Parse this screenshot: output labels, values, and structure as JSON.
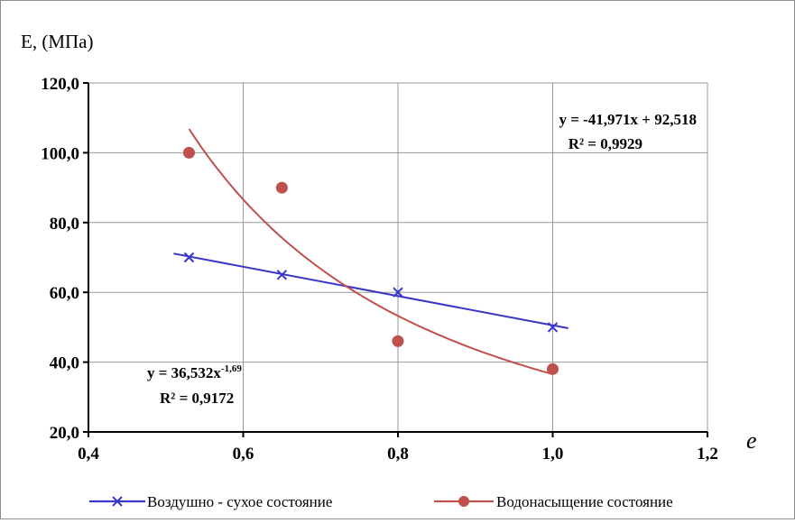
{
  "chart_data": {
    "type": "scatter",
    "title": "",
    "xlabel": "e",
    "ylabel": "E, (МПа)",
    "xlim": [
      0.4,
      1.2
    ],
    "ylim": [
      20.0,
      120.0
    ],
    "x_ticks": [
      "0,4",
      "0,6",
      "0,8",
      "1,0",
      "1,2"
    ],
    "y_ticks": [
      "20,0",
      "40,0",
      "60,0",
      "80,0",
      "100,0",
      "120,0"
    ],
    "grid": true,
    "legend_position": "bottom",
    "series": [
      {
        "name": "Воздушно - сухое состояние",
        "marker": "x",
        "color": "#3a36c8",
        "points": [
          {
            "x": 0.53,
            "y": 70
          },
          {
            "x": 0.65,
            "y": 65
          },
          {
            "x": 0.8,
            "y": 60
          },
          {
            "x": 1.0,
            "y": 50
          }
        ],
        "trendline": {
          "type": "linear",
          "slope": -41.971,
          "intercept": 92.518,
          "range": [
            0.51,
            1.02
          ],
          "equation": "y = -41,971x + 92,518",
          "r2": "R² = 0,9929"
        }
      },
      {
        "name": "Водонасыщение состояние",
        "marker": "circle",
        "color": "#c0504d",
        "points": [
          {
            "x": 0.53,
            "y": 100
          },
          {
            "x": 0.65,
            "y": 90
          },
          {
            "x": 0.8,
            "y": 46
          },
          {
            "x": 1.0,
            "y": 38
          }
        ],
        "trendline": {
          "type": "power",
          "coefficient": 36.532,
          "exponent": -1.69,
          "range": [
            0.53,
            1.0
          ],
          "equation_base": "y = 36,532x",
          "equation_exp": "-1,69",
          "r2": "R² = 0,9172"
        }
      }
    ]
  }
}
